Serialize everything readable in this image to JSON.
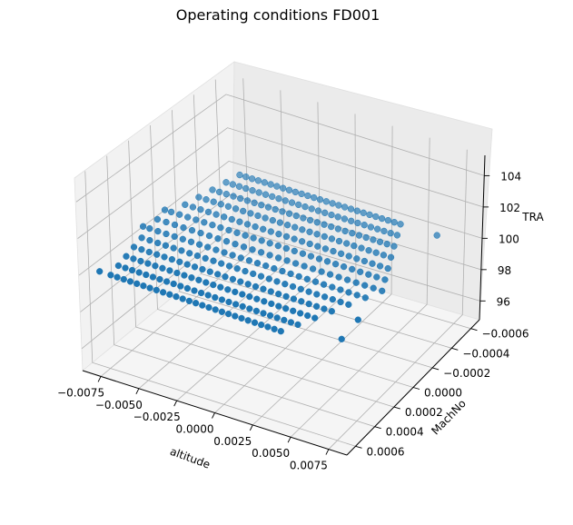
{
  "chart_data": {
    "type": "scatter",
    "title": "Operating conditions FD001",
    "xlabel": "altitude",
    "ylabel": "MachNo",
    "zlabel": "TRA",
    "x_ticks": [
      "−0.0075",
      "−0.0050",
      "−0.0025",
      "0.0000",
      "0.0025",
      "0.0050",
      "0.0075"
    ],
    "y_ticks": [
      "−0.0006",
      "−0.0004",
      "−0.0002",
      "0.0000",
      "0.0002",
      "0.0004",
      "0.0006"
    ],
    "z_ticks": [
      "96",
      "98",
      "100",
      "102",
      "104"
    ],
    "xlim": [
      -0.0087,
      0.0087
    ],
    "ylim": [
      -0.00069,
      0.00069
    ],
    "zlim": [
      94.8,
      105.3
    ],
    "grid": true,
    "marker_color": "#1f77b4",
    "series": [
      {
        "tra": 100,
        "mach_levels": [
          -0.0006,
          -0.0005,
          -0.0004,
          -0.0003,
          -0.0002,
          -0.0001,
          0.0,
          0.0001,
          0.0002,
          0.0003,
          0.0004,
          0.0005,
          0.0006
        ],
        "altitude_range": [
          -0.0087,
          0.007
        ],
        "outliers": [
          {
            "x": -0.0087,
            "y": -0.0001,
            "z": 100.0
          },
          {
            "x": -0.0087,
            "y": 0.0001,
            "z": 100.0
          },
          {
            "x": 0.007,
            "y": 0.0005,
            "z": 100.0
          },
          {
            "x": 0.0062,
            "y": -0.0006,
            "z": 100.0
          },
          {
            "x": 0.0068,
            "y": 0.0003,
            "z": 100.0
          },
          {
            "x": -0.008,
            "y": 0.0006,
            "z": 100.0
          }
        ]
      }
    ]
  }
}
